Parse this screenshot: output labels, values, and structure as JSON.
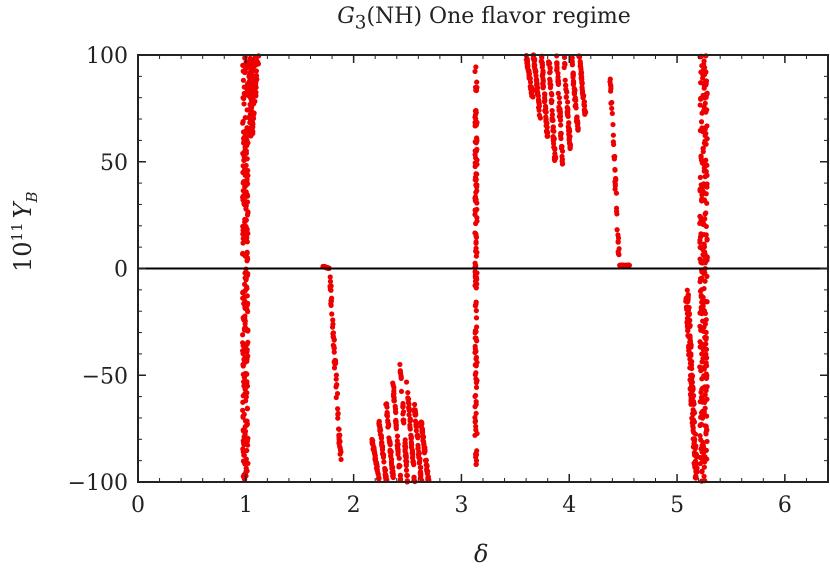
{
  "chart_data": {
    "type": "scatter",
    "title_base": "G",
    "title_sub": "3",
    "title_rest": "(NH) One flavor regime",
    "xlabel": "δ",
    "ylabel_base": "10",
    "ylabel_exp": "11",
    "ylabel_var": "Y",
    "ylabel_sub": "B",
    "xlim": [
      0,
      6.4
    ],
    "ylim": [
      -100,
      100
    ],
    "xticks": [
      0,
      1,
      2,
      3,
      4,
      5,
      6
    ],
    "yticks": [
      -100,
      -50,
      0,
      50,
      100
    ],
    "zero_line": true,
    "grid": false,
    "color": "#ee0000",
    "clusters": [
      {
        "label": "delta~1.0 vertical band",
        "x": [
          0.96,
          1.02
        ],
        "y": [
          -100,
          100
        ]
      },
      {
        "label": "delta~1.1 upper band",
        "x": [
          1.02,
          1.13
        ],
        "y": [
          60,
          100
        ]
      },
      {
        "label": "delta~1.75-1.85 curve",
        "x": [
          1.72,
          1.88
        ],
        "y": [
          -90,
          2
        ]
      },
      {
        "label": "delta~2.1-2.7 arcs",
        "x": [
          2.1,
          2.7
        ],
        "y": [
          -100,
          -42
        ]
      },
      {
        "label": "delta~3.13 vertical band",
        "x": [
          3.12,
          3.15
        ],
        "y": [
          -95,
          95
        ]
      },
      {
        "label": "delta~3.6-4.2 arcs",
        "x": [
          3.58,
          4.2
        ],
        "y": [
          42,
          100
        ]
      },
      {
        "label": "delta~4.4-4.55 curve",
        "x": [
          4.38,
          4.56
        ],
        "y": [
          0,
          90
        ]
      },
      {
        "label": "delta~5.1-5.2 band",
        "x": [
          5.08,
          5.2
        ],
        "y": [
          -100,
          -10
        ]
      },
      {
        "label": "delta~5.2-5.3 vertical band",
        "x": [
          5.18,
          5.3
        ],
        "y": [
          -100,
          100
        ]
      }
    ]
  }
}
